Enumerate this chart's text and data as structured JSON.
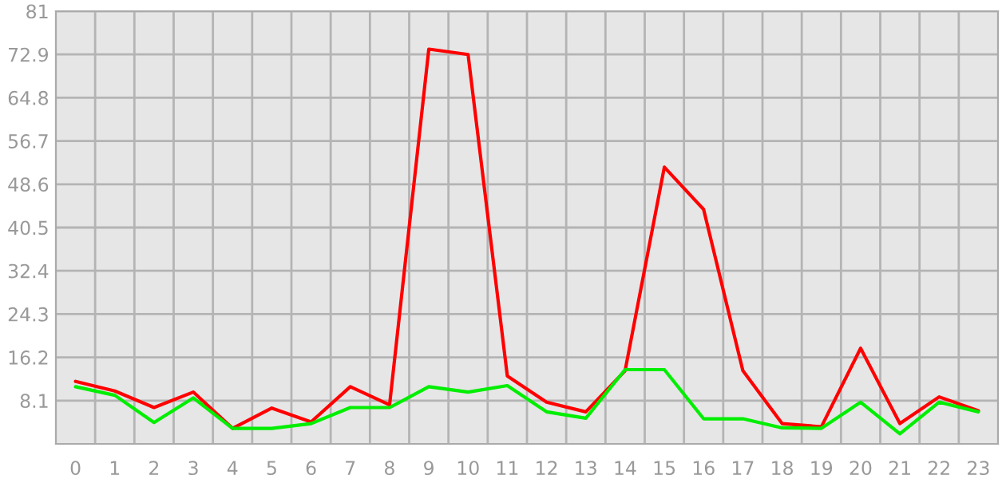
{
  "chart_data": {
    "type": "line",
    "categories": [
      "0",
      "1",
      "2",
      "3",
      "4",
      "5",
      "6",
      "7",
      "8",
      "9",
      "10",
      "11",
      "12",
      "13",
      "14",
      "15",
      "16",
      "17",
      "18",
      "19",
      "20",
      "21",
      "22",
      "23"
    ],
    "series": [
      {
        "color": "#ff0000",
        "values": [
          11.7,
          9.9,
          6.8,
          9.7,
          2.9,
          6.7,
          4.1,
          10.7,
          7.3,
          73.9,
          72.9,
          12.7,
          7.8,
          6.0,
          13.7,
          51.8,
          43.9,
          13.7,
          3.8,
          3.2,
          17.9,
          3.8,
          8.8,
          6.2
        ]
      },
      {
        "color": "#00ee00",
        "values": [
          10.7,
          9.1,
          4.0,
          8.6,
          2.9,
          2.9,
          3.8,
          6.8,
          6.8,
          10.7,
          9.7,
          10.9,
          6.0,
          4.8,
          13.9,
          13.9,
          4.7,
          4.7,
          3.0,
          2.9,
          7.8,
          1.9,
          7.8,
          6.0
        ]
      }
    ],
    "ylim": [
      0,
      81
    ],
    "yticks": [
      8.1,
      16.2,
      24.3,
      32.4,
      40.5,
      48.6,
      56.7,
      64.8,
      72.9,
      81
    ],
    "grid": true,
    "marker": "none",
    "line_style": "solid"
  }
}
